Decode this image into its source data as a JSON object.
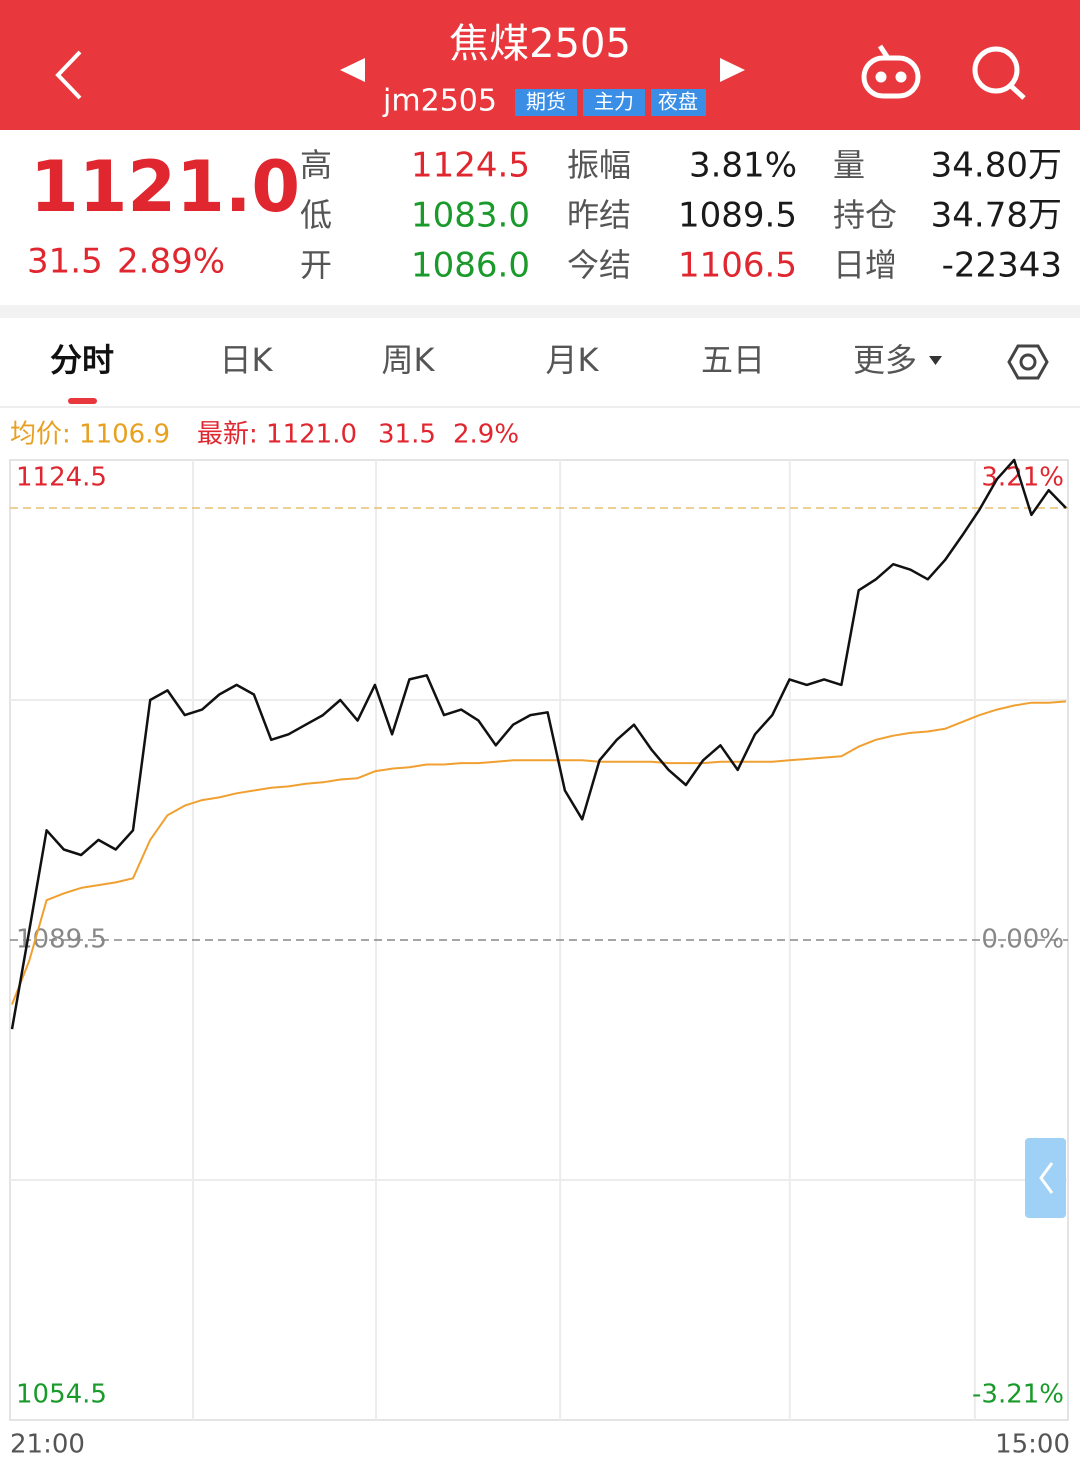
{
  "header": {
    "title": "焦煤2505",
    "code": "jm2505",
    "tags": [
      "期货",
      "主力",
      "夜盘"
    ]
  },
  "quote": {
    "price": "1121.0",
    "change": "31.5",
    "change_pct": "2.89%"
  },
  "stats": [
    [
      {
        "label": "高",
        "value": "1124.5",
        "color": "#e0262e"
      },
      {
        "label": "振幅",
        "value": "3.81%",
        "color": "#1a1a1a"
      },
      {
        "label": "量",
        "value": "34.80万",
        "color": "#1a1a1a"
      }
    ],
    [
      {
        "label": "低",
        "value": "1083.0",
        "color": "#1a9a2a"
      },
      {
        "label": "昨结",
        "value": "1089.5",
        "color": "#1a1a1a"
      },
      {
        "label": "持仓",
        "value": "34.78万",
        "color": "#1a1a1a"
      }
    ],
    [
      {
        "label": "开",
        "value": "1086.0",
        "color": "#1a9a2a"
      },
      {
        "label": "今结",
        "value": "1106.5",
        "color": "#e0262e"
      },
      {
        "label": "日增",
        "value": "-22343",
        "color": "#1a1a1a"
      }
    ]
  ],
  "tabs": [
    "分时",
    "日K",
    "周K",
    "月K",
    "五日",
    "更多"
  ],
  "legend": {
    "avg": "均价: 1106.9",
    "latest": "最新: 1121.0",
    "change": "31.5",
    "change_pct": "2.9%"
  },
  "chart_data": {
    "type": "line",
    "xlabels": [
      "21:00",
      "15:00"
    ],
    "series": [
      {
        "name": "最新",
        "color": "#111111",
        "values": [
          1083.0,
          1090.2,
          1097.5,
          1096.1,
          1095.7,
          1096.8,
          1096.1,
          1097.5,
          1107.0,
          1107.7,
          1105.9,
          1106.3,
          1107.4,
          1108.1,
          1107.4,
          1104.1,
          1104.5,
          1105.2,
          1105.9,
          1107.0,
          1105.5,
          1108.1,
          1104.5,
          1108.5,
          1108.8,
          1105.9,
          1106.3,
          1105.5,
          1103.7,
          1105.2,
          1105.9,
          1106.1,
          1100.4,
          1098.3,
          1102.6,
          1104.1,
          1105.2,
          1103.4,
          1101.9,
          1100.8,
          1102.6,
          1103.7,
          1101.9,
          1104.5,
          1105.9,
          1108.5,
          1108.1,
          1108.5,
          1108.1,
          1115.0,
          1115.8,
          1116.9,
          1116.5,
          1115.8,
          1117.2,
          1119.0,
          1120.9,
          1123.1,
          1124.5,
          1120.5,
          1122.3,
          1121.0
        ]
      },
      {
        "name": "均价",
        "color": "#f0a030",
        "values": [
          1084.8,
          1088.0,
          1092.4,
          1092.9,
          1093.3,
          1093.5,
          1093.7,
          1094.0,
          1096.8,
          1098.6,
          1099.3,
          1099.7,
          1099.9,
          1100.2,
          1100.4,
          1100.6,
          1100.7,
          1100.9,
          1101.0,
          1101.2,
          1101.3,
          1101.8,
          1102.0,
          1102.1,
          1102.3,
          1102.3,
          1102.4,
          1102.4,
          1102.5,
          1102.6,
          1102.6,
          1102.6,
          1102.6,
          1102.6,
          1102.5,
          1102.5,
          1102.5,
          1102.5,
          1102.4,
          1102.4,
          1102.4,
          1102.5,
          1102.5,
          1102.5,
          1102.5,
          1102.6,
          1102.7,
          1102.8,
          1102.9,
          1103.6,
          1104.1,
          1104.4,
          1104.6,
          1104.7,
          1104.9,
          1105.4,
          1105.9,
          1106.3,
          1106.6,
          1106.8,
          1106.8,
          1106.9
        ]
      }
    ],
    "ylim": [
      1054.5,
      1124.5
    ],
    "yticks": [
      1054.5,
      1089.5,
      1124.5
    ],
    "ytick_colors": [
      "#1a9a2a",
      "#888888",
      "#e0262e"
    ],
    "y2lim": [
      -3.21,
      3.21
    ],
    "y2ticks": [
      {
        "value": -3.21,
        "label": "-3.21%"
      },
      {
        "value": 0,
        "label": "0.00%"
      },
      {
        "value": 3.21,
        "label": "3.21%"
      }
    ],
    "grid": true
  }
}
